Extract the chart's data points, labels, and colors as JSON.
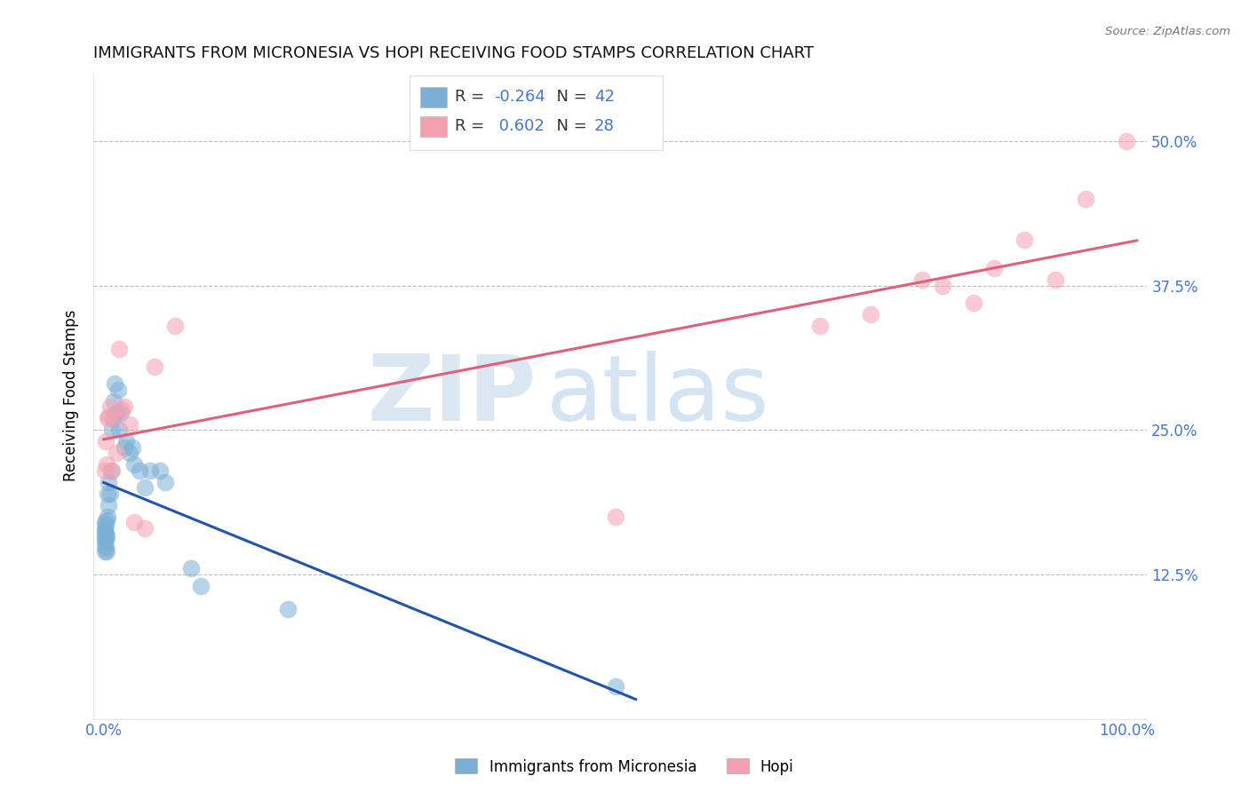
{
  "title": "IMMIGRANTS FROM MICRONESIA VS HOPI RECEIVING FOOD STAMPS CORRELATION CHART",
  "source": "Source: ZipAtlas.com",
  "ylabel": "Receiving Food Stamps",
  "ytick_labels": [
    "12.5%",
    "25.0%",
    "37.5%",
    "50.0%"
  ],
  "ytick_values": [
    0.125,
    0.25,
    0.375,
    0.5
  ],
  "xlim": [
    -0.01,
    1.02
  ],
  "ylim": [
    0.0,
    0.56
  ],
  "blue_label": "Immigrants from Micronesia",
  "pink_label": "Hopi",
  "blue_R": "-0.264",
  "blue_N": "42",
  "pink_R": "0.602",
  "pink_N": "28",
  "blue_color": "#7BAFD4",
  "pink_color": "#F4A0B0",
  "blue_edge_color": "#5588BB",
  "pink_edge_color": "#E07090",
  "blue_line_color": "#2255AA",
  "pink_line_color": "#E0607A",
  "watermark_zip": "ZIP",
  "watermark_atlas": "atlas",
  "background_color": "#FFFFFF",
  "blue_x": [
    0.001,
    0.001,
    0.001,
    0.001,
    0.001,
    0.001,
    0.001,
    0.002,
    0.002,
    0.002,
    0.002,
    0.003,
    0.003,
    0.003,
    0.004,
    0.004,
    0.005,
    0.005,
    0.006,
    0.007,
    0.008,
    0.009,
    0.01,
    0.011,
    0.012,
    0.014,
    0.015,
    0.017,
    0.02,
    0.022,
    0.025,
    0.028,
    0.03,
    0.035,
    0.04,
    0.045,
    0.055,
    0.06,
    0.085,
    0.095,
    0.18,
    0.5
  ],
  "blue_y": [
    0.145,
    0.15,
    0.155,
    0.158,
    0.162,
    0.165,
    0.17,
    0.148,
    0.155,
    0.16,
    0.168,
    0.145,
    0.158,
    0.172,
    0.175,
    0.195,
    0.185,
    0.205,
    0.195,
    0.215,
    0.25,
    0.26,
    0.275,
    0.29,
    0.265,
    0.285,
    0.25,
    0.265,
    0.235,
    0.24,
    0.23,
    0.235,
    0.22,
    0.215,
    0.2,
    0.215,
    0.215,
    0.205,
    0.13,
    0.115,
    0.095,
    0.028
  ],
  "pink_x": [
    0.001,
    0.002,
    0.003,
    0.004,
    0.005,
    0.006,
    0.008,
    0.01,
    0.012,
    0.015,
    0.018,
    0.02,
    0.025,
    0.03,
    0.04,
    0.05,
    0.07,
    0.5,
    0.7,
    0.75,
    0.8,
    0.82,
    0.85,
    0.87,
    0.9,
    0.93,
    0.96,
    1.0
  ],
  "pink_y": [
    0.215,
    0.24,
    0.22,
    0.26,
    0.262,
    0.27,
    0.215,
    0.26,
    0.23,
    0.32,
    0.268,
    0.27,
    0.255,
    0.17,
    0.165,
    0.305,
    0.34,
    0.175,
    0.34,
    0.35,
    0.38,
    0.375,
    0.36,
    0.39,
    0.415,
    0.38,
    0.45,
    0.5
  ]
}
